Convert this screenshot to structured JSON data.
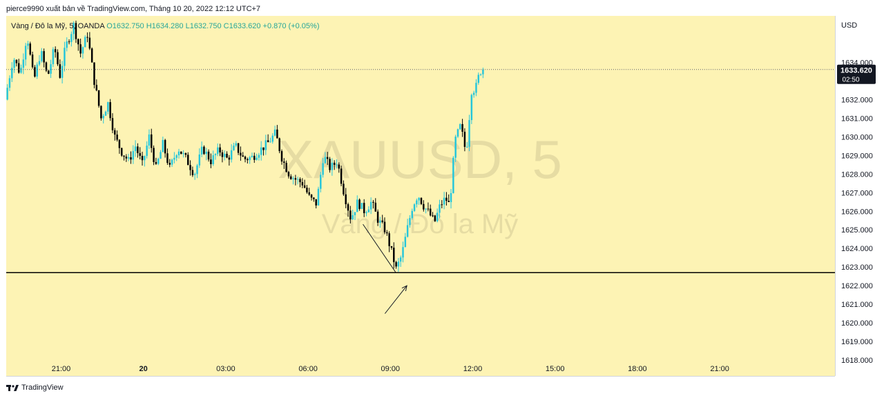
{
  "header": {
    "publisher": "pierce9990 xuất bản về TradingView.com,",
    "date": "Tháng 10 20, 2022 12:12 UTC+7"
  },
  "legend": {
    "symbol_text": "Vàng / Đô la Mỹ, 5, OANDA",
    "open": "O1632.750",
    "high": "H1634.280",
    "low": "L1632.750",
    "close": "C1633.620",
    "change": "+0.870 (+0.05%)"
  },
  "watermark": {
    "symbol": "XAUUSD, 5",
    "description": "Vàng / Đô la Mỹ"
  },
  "footer": {
    "brand": "TradingView"
  },
  "colors": {
    "background": "#fdf3b4",
    "up": "#26c6da",
    "down": "#000000",
    "accent": "#131722"
  },
  "chart_data": {
    "type": "candlestick",
    "title": "XAUUSD, 5",
    "currency": "USD",
    "ylim": [
      1617.15,
      1636.5
    ],
    "y_ticks": [
      1618,
      1619,
      1620,
      1621,
      1622,
      1623,
      1624,
      1625,
      1626,
      1627,
      1628,
      1629,
      1630,
      1631,
      1632,
      1633,
      1634
    ],
    "y_tick_labels": [
      "1618.000",
      "1619.000",
      "1620.000",
      "1621.000",
      "1622.000",
      "1623.000",
      "1624.000",
      "1625.000",
      "1626.000",
      "1627.000",
      "1628.000",
      "1629.000",
      "1630.000",
      "1631.000",
      "1632.000",
      "1633.000",
      "1634.000"
    ],
    "x_start_hours": 19.0,
    "x_end_hours": 49.2,
    "x_ticks": [
      {
        "label": "21:00",
        "hours": 21,
        "bold": false
      },
      {
        "label": "20",
        "hours": 24,
        "bold": true
      },
      {
        "label": "03:00",
        "hours": 27,
        "bold": false
      },
      {
        "label": "06:00",
        "hours": 30,
        "bold": false
      },
      {
        "label": "09:00",
        "hours": 33,
        "bold": false
      },
      {
        "label": "12:00",
        "hours": 36,
        "bold": false
      },
      {
        "label": "15:00",
        "hours": 39,
        "bold": false
      },
      {
        "label": "18:00",
        "hours": 42,
        "bold": false
      },
      {
        "label": "21:00",
        "hours": 45,
        "bold": false
      }
    ],
    "current_price": "1633.620",
    "current_value": 1633.62,
    "countdown": "02:50",
    "horizontal_line": 1622.7,
    "anchors": [
      [
        19.0,
        1632.0
      ],
      [
        19.3,
        1634.3
      ],
      [
        19.55,
        1633.4
      ],
      [
        19.8,
        1635.5
      ],
      [
        20.05,
        1633.0
      ],
      [
        20.3,
        1634.6
      ],
      [
        20.55,
        1633.2
      ],
      [
        20.8,
        1634.8
      ],
      [
        21.0,
        1633.3
      ],
      [
        21.2,
        1634.8
      ],
      [
        21.5,
        1636.0
      ],
      [
        21.75,
        1634.5
      ],
      [
        22.0,
        1635.5
      ],
      [
        22.25,
        1633.0
      ],
      [
        22.5,
        1631.0
      ],
      [
        22.75,
        1631.8
      ],
      [
        23.0,
        1630.0
      ],
      [
        23.25,
        1629.2
      ],
      [
        23.5,
        1628.7
      ],
      [
        23.75,
        1629.5
      ],
      [
        24.0,
        1628.5
      ],
      [
        24.25,
        1630.0
      ],
      [
        24.5,
        1628.3
      ],
      [
        24.75,
        1629.6
      ],
      [
        25.0,
        1628.3
      ],
      [
        25.3,
        1629.4
      ],
      [
        25.6,
        1628.8
      ],
      [
        25.9,
        1628.0
      ],
      [
        26.2,
        1629.4
      ],
      [
        26.5,
        1628.7
      ],
      [
        26.8,
        1629.3
      ],
      [
        27.1,
        1628.8
      ],
      [
        27.4,
        1629.5
      ],
      [
        27.7,
        1628.8
      ],
      [
        28.0,
        1628.9
      ],
      [
        28.3,
        1629.3
      ],
      [
        28.6,
        1629.7
      ],
      [
        28.85,
        1630.2
      ],
      [
        29.1,
        1628.8
      ],
      [
        29.35,
        1628.0
      ],
      [
        29.6,
        1627.7
      ],
      [
        29.85,
        1627.5
      ],
      [
        30.1,
        1626.7
      ],
      [
        30.35,
        1626.4
      ],
      [
        30.6,
        1629.0
      ],
      [
        30.85,
        1628.3
      ],
      [
        31.1,
        1628.7
      ],
      [
        31.35,
        1627.0
      ],
      [
        31.6,
        1625.6
      ],
      [
        31.85,
        1626.5
      ],
      [
        32.1,
        1626.0
      ],
      [
        32.35,
        1626.5
      ],
      [
        32.6,
        1625.5
      ],
      [
        32.85,
        1625.0
      ],
      [
        33.05,
        1624.0
      ],
      [
        33.25,
        1622.9
      ],
      [
        33.45,
        1623.6
      ],
      [
        33.65,
        1625.0
      ],
      [
        33.85,
        1626.3
      ],
      [
        34.05,
        1626.9
      ],
      [
        34.25,
        1626.3
      ],
      [
        34.45,
        1625.9
      ],
      [
        34.65,
        1625.4
      ],
      [
        34.85,
        1626.3
      ],
      [
        35.05,
        1626.7
      ],
      [
        35.2,
        1626.3
      ],
      [
        35.4,
        1629.8
      ],
      [
        35.6,
        1630.6
      ],
      [
        35.8,
        1629.1
      ],
      [
        36.0,
        1632.5
      ],
      [
        36.15,
        1632.6
      ],
      [
        36.25,
        1633.2
      ],
      [
        36.35,
        1633.62
      ]
    ],
    "annotations": [
      {
        "type": "line",
        "from": [
          32.0,
          1625.3
        ],
        "to": [
          33.2,
          1622.7
        ]
      },
      {
        "type": "arrow",
        "from": [
          32.8,
          1620.5
        ],
        "to": [
          33.6,
          1622.0
        ]
      }
    ]
  }
}
